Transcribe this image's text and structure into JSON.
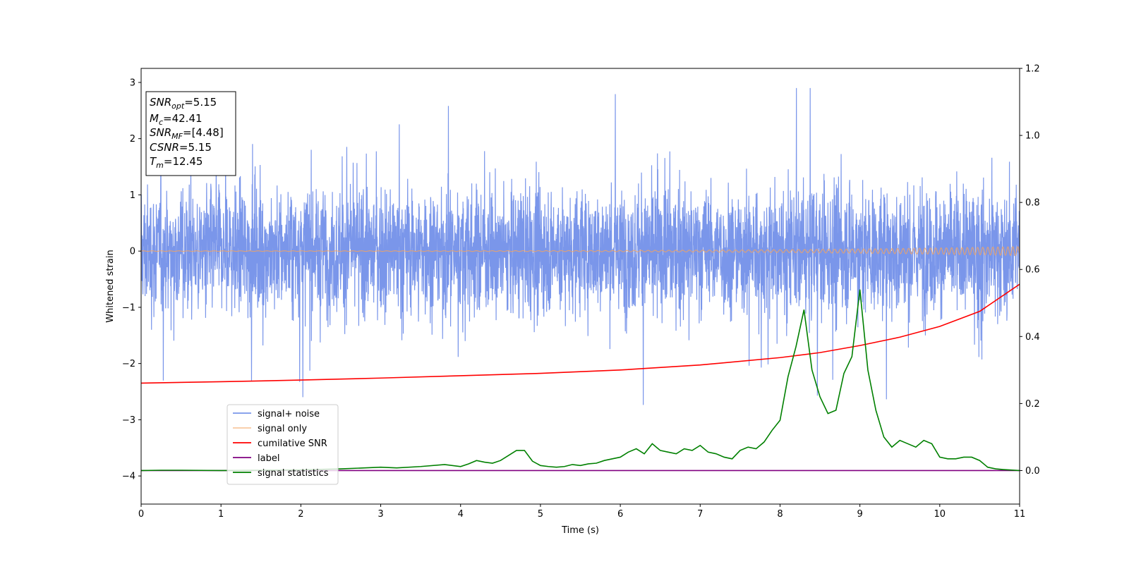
{
  "chart_data": {
    "type": "line",
    "xlabel": "Time (s)",
    "ylabel": "Whitened strain",
    "xlim": [
      0,
      11
    ],
    "ylim_left": [
      -4.5,
      3.25
    ],
    "ylim_right": [
      -0.1,
      1.2
    ],
    "x_ticks": [
      "0",
      "1",
      "2",
      "3",
      "4",
      "5",
      "6",
      "7",
      "8",
      "9",
      "10",
      "11"
    ],
    "y_left_ticks": [
      "−4",
      "−3",
      "−2",
      "−1",
      "0",
      "1",
      "2",
      "3"
    ],
    "y_right_ticks": [
      "0.0",
      "0.2",
      "0.4",
      "0.6",
      "0.8",
      "1.0",
      "1.2"
    ],
    "legend_position": "lower-left",
    "grid": false,
    "series": [
      {
        "name": "signal+ noise",
        "axis": "left",
        "color": "#4169e1",
        "style": "noise",
        "typical_range": [
          -1.5,
          1.5
        ],
        "max": 2.9,
        "min": -2.9
      },
      {
        "name": "signal only",
        "axis": "left",
        "color": "#f4a460",
        "style": "chirp",
        "amplitude_start": 0.005,
        "amplitude_end": 0.08
      },
      {
        "name": "cumilative SNR",
        "axis": "right",
        "color": "#ff0000",
        "x": [
          0,
          1,
          2,
          3,
          4,
          5,
          6,
          7,
          8,
          8.5,
          9,
          9.5,
          10,
          10.5,
          11
        ],
        "y": [
          0.261,
          0.265,
          0.27,
          0.276,
          0.283,
          0.29,
          0.3,
          0.315,
          0.337,
          0.352,
          0.373,
          0.398,
          0.43,
          0.475,
          0.556
        ]
      },
      {
        "name": "label",
        "axis": "right",
        "color": "#800080",
        "x": [
          0,
          11
        ],
        "y": [
          0,
          0
        ]
      },
      {
        "name": "signal statistics",
        "axis": "right",
        "color": "#008000",
        "x": [
          0,
          0.25,
          0.5,
          1.0,
          1.5,
          2.0,
          2.5,
          3.0,
          3.2,
          3.5,
          3.8,
          4.0,
          4.1,
          4.2,
          4.3,
          4.4,
          4.5,
          4.6,
          4.7,
          4.8,
          4.9,
          5.0,
          5.1,
          5.2,
          5.3,
          5.4,
          5.5,
          5.6,
          5.7,
          5.8,
          5.9,
          6.0,
          6.1,
          6.2,
          6.3,
          6.4,
          6.5,
          6.6,
          6.7,
          6.8,
          6.9,
          7.0,
          7.1,
          7.2,
          7.3,
          7.4,
          7.5,
          7.6,
          7.7,
          7.8,
          7.9,
          8.0,
          8.1,
          8.2,
          8.3,
          8.4,
          8.5,
          8.6,
          8.7,
          8.8,
          8.9,
          9.0,
          9.1,
          9.2,
          9.3,
          9.4,
          9.5,
          9.6,
          9.7,
          9.8,
          9.9,
          10.0,
          10.1,
          10.2,
          10.3,
          10.4,
          10.5,
          10.6,
          10.7,
          10.8,
          11.0
        ],
        "y": [
          0,
          0.001,
          0.001,
          0,
          0.001,
          0.002,
          0.005,
          0.01,
          0.008,
          0.012,
          0.018,
          0.012,
          0.02,
          0.03,
          0.025,
          0.022,
          0.03,
          0.045,
          0.06,
          0.06,
          0.028,
          0.015,
          0.012,
          0.01,
          0.012,
          0.018,
          0.015,
          0.02,
          0.022,
          0.03,
          0.035,
          0.04,
          0.055,
          0.065,
          0.05,
          0.08,
          0.06,
          0.055,
          0.05,
          0.065,
          0.06,
          0.075,
          0.055,
          0.05,
          0.04,
          0.035,
          0.06,
          0.07,
          0.065,
          0.085,
          0.12,
          0.15,
          0.28,
          0.37,
          0.48,
          0.3,
          0.22,
          0.17,
          0.18,
          0.29,
          0.34,
          0.54,
          0.3,
          0.18,
          0.1,
          0.07,
          0.09,
          0.08,
          0.07,
          0.09,
          0.08,
          0.04,
          0.035,
          0.035,
          0.04,
          0.04,
          0.03,
          0.01,
          0.005,
          0.003,
          0
        ]
      }
    ],
    "annotation": [
      {
        "main": "SNR",
        "sub": "opt",
        "rest": "=5.15"
      },
      {
        "main": "M",
        "sub": "c",
        "rest": "=42.41"
      },
      {
        "main": "SNR",
        "sub": "MF",
        "rest": "=[4.48]"
      },
      {
        "main": "CSNR",
        "sub": "",
        "rest": "=5.15"
      },
      {
        "main": "T",
        "sub": "m",
        "rest": "=12.45"
      }
    ]
  }
}
